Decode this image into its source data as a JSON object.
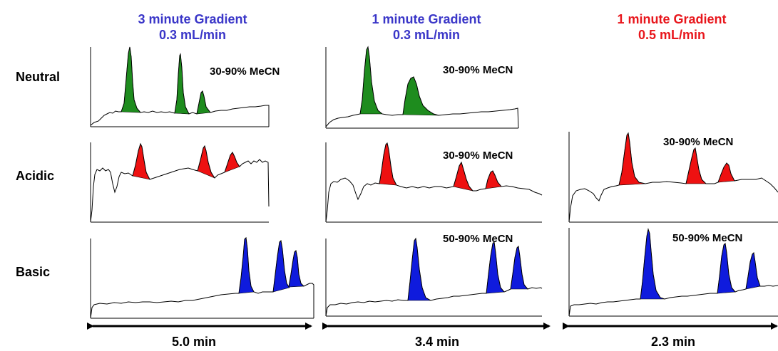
{
  "columns": [
    {
      "title_line1": "3 minute Gradient",
      "title_line2": "0.3 mL/min",
      "color": "#3a36c8",
      "time": "5.0 min"
    },
    {
      "title_line1": "1 minute Gradient",
      "title_line2": "0.3 mL/min",
      "color": "#3a36c8",
      "time": "3.4 min"
    },
    {
      "title_line1": "1 minute Gradient",
      "title_line2": "0.5 mL/min",
      "color": "#e8161c",
      "time": "2.3 min"
    }
  ],
  "rows": [
    {
      "label": "Neutral",
      "peak_color": "#1e8c1e"
    },
    {
      "label": "Acidic",
      "peak_color": "#ee1111"
    },
    {
      "label": "Basic",
      "peak_color": "#0f1bdd"
    }
  ],
  "conditions": {
    "neutral_c1": "30-90% MeCN",
    "neutral_c2": "30-90% MeCN",
    "acidic_c2": "30-90% MeCN",
    "acidic_c3": "30-90% MeCN",
    "basic_c2": "50-90% MeCN",
    "basic_c3": "50-90% MeCN"
  }
}
